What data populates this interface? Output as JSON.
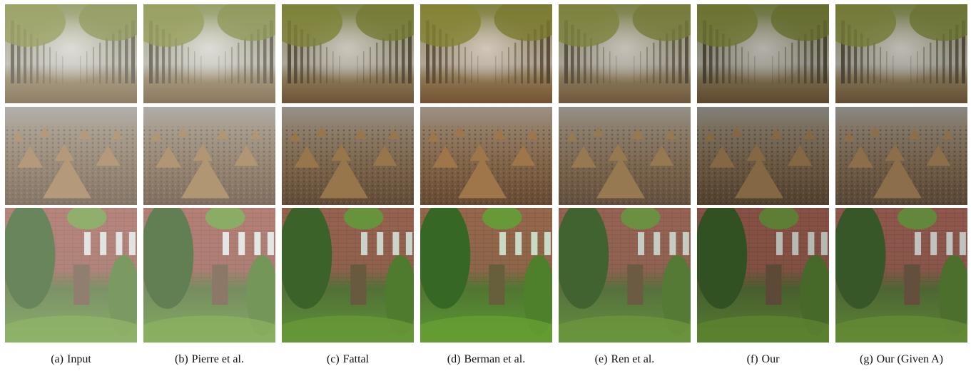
{
  "captions": [
    {
      "label": "(a)",
      "name": "Input"
    },
    {
      "label": "(b)",
      "name": "Pierre et al."
    },
    {
      "label": "(c)",
      "name": "Fattal"
    },
    {
      "label": "(d)",
      "name": "Berman et al."
    },
    {
      "label": "(e)",
      "name": "Ren et al."
    },
    {
      "label": "(f)",
      "name": "Our"
    },
    {
      "label": "(g)",
      "name": "Our (Given A)"
    }
  ]
}
